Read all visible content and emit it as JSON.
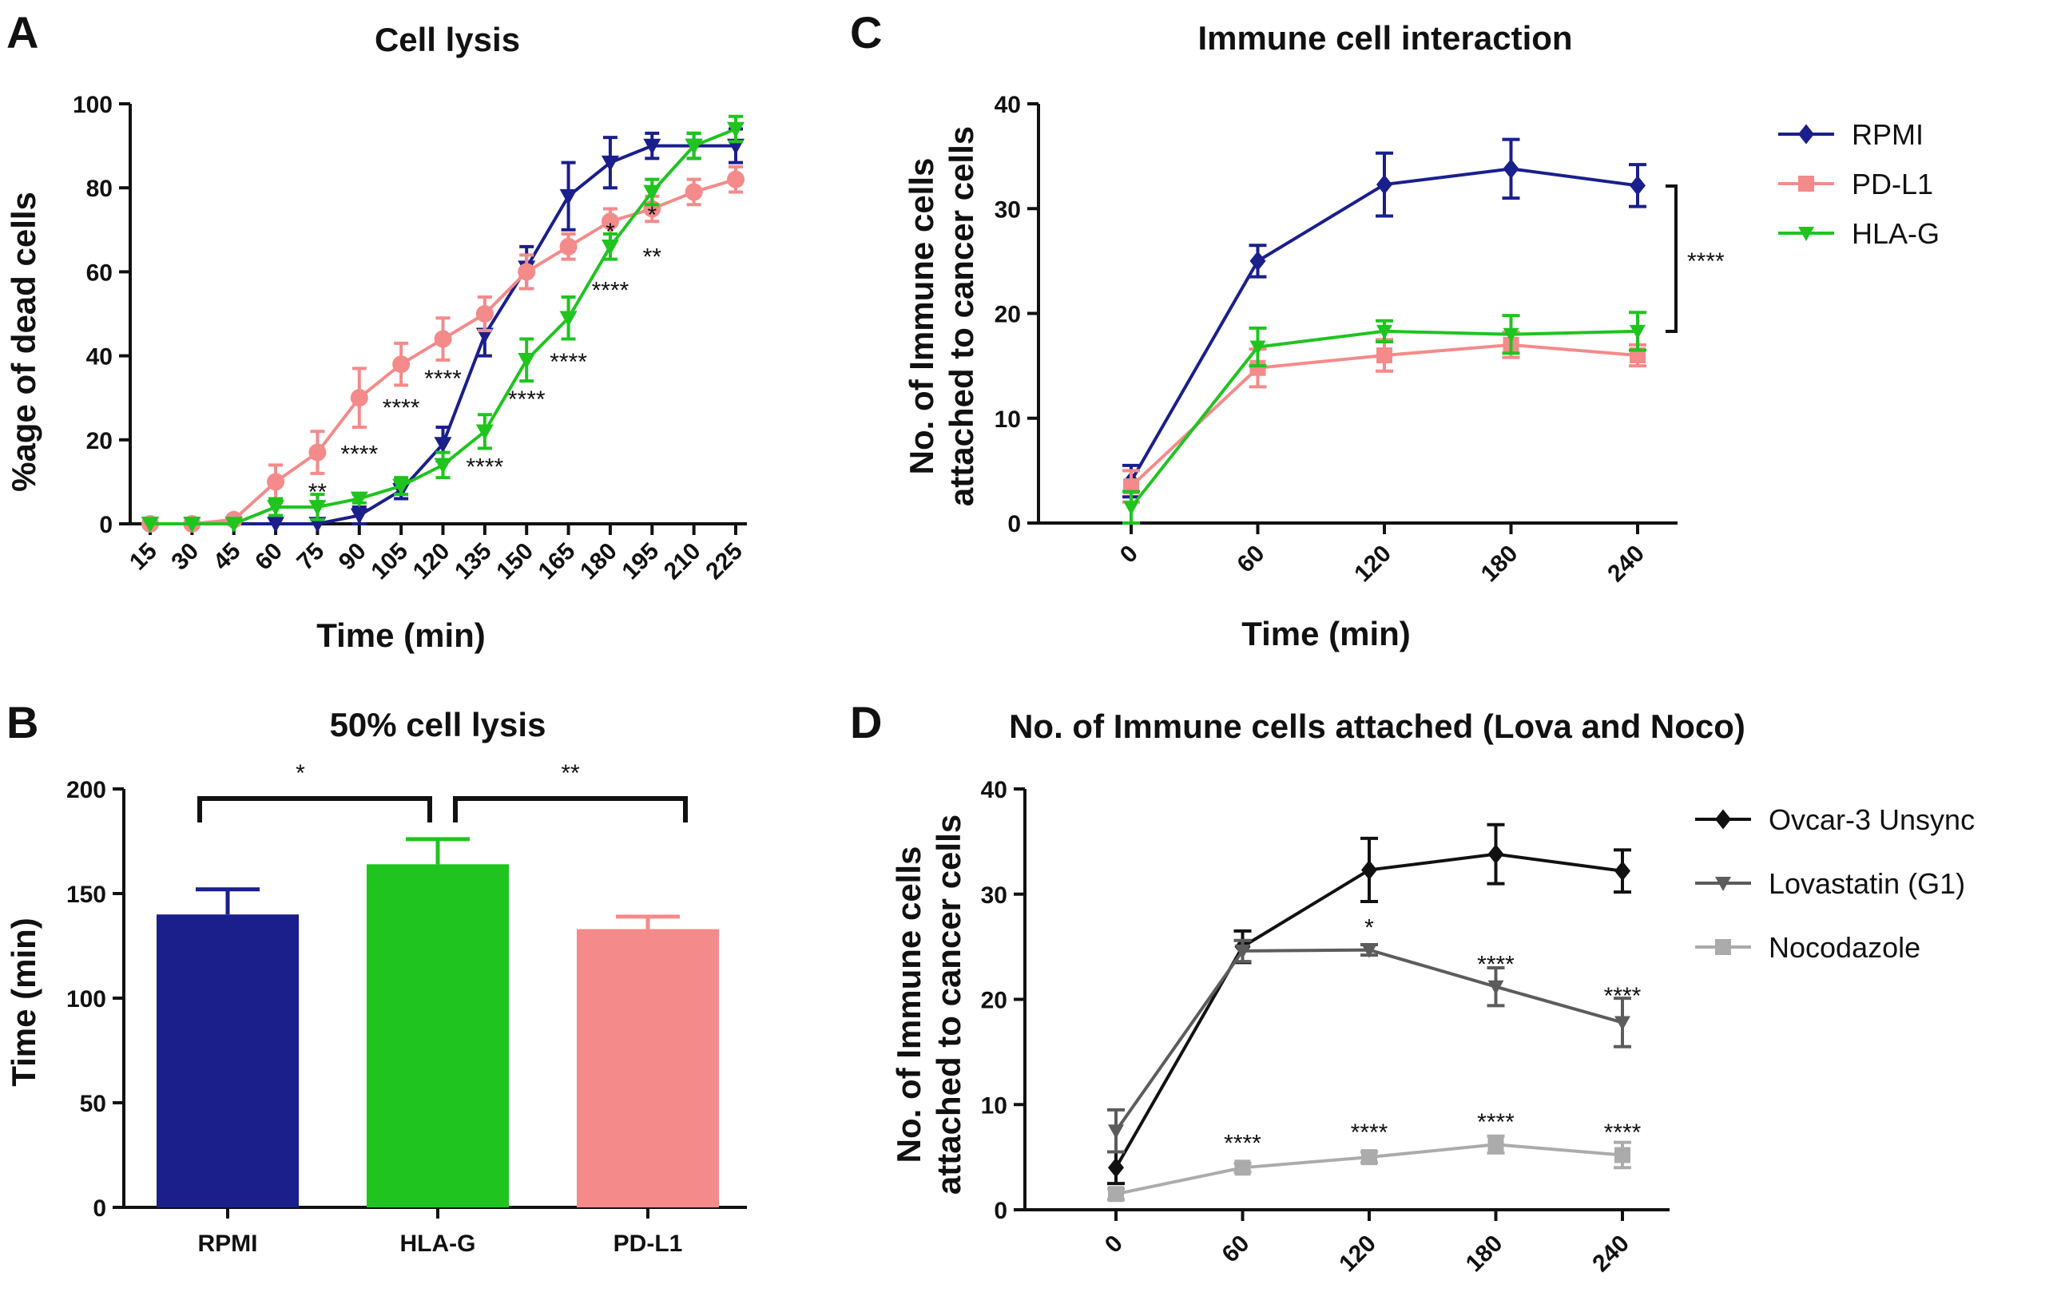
{
  "panels": {
    "A": {
      "letter": "A",
      "title": "Cell lysis",
      "xlabel": "Time (min)",
      "ylabel": "%age of dead cells"
    },
    "B": {
      "letter": "B",
      "title": "50% cell lysis",
      "xlabel": "",
      "ylabel": "Time (min)"
    },
    "C": {
      "letter": "C",
      "title": "Immune cell interaction",
      "xlabel": "Time (min)",
      "ylabel_line1": "No. of Immune cells",
      "ylabel_line2": "attached to cancer cells"
    },
    "D": {
      "letter": "D",
      "title": "No. of Immune cells attached (Lova and Noco)",
      "xlabel": "",
      "ylabel_line1": "No. of Immune cells",
      "ylabel_line2": "attached to cancer cells"
    }
  },
  "colors": {
    "rpmi": "#1a1f8c",
    "pdl1": "#f48a8a",
    "hlag": "#1fc41f",
    "unsync": "#111111",
    "lova": "#5c5c5c",
    "noco": "#ababab"
  },
  "chart_data": [
    {
      "id": "A",
      "type": "line",
      "title": "Cell lysis",
      "xlabel": "Time (min)",
      "ylabel": "%age of dead cells",
      "x": [
        15,
        30,
        45,
        60,
        75,
        90,
        105,
        120,
        135,
        150,
        165,
        180,
        195,
        210,
        225
      ],
      "xticks": [
        "15",
        "30",
        "45",
        "60",
        "75",
        "90",
        "105",
        "120",
        "135",
        "150",
        "165",
        "180",
        "195",
        "210",
        "225"
      ],
      "ylim": [
        0,
        100
      ],
      "yticks": [
        "0",
        "20",
        "40",
        "60",
        "80",
        "100"
      ],
      "series": [
        {
          "key": "rpmi",
          "marker": "triangle-down",
          "values": [
            0,
            0,
            0,
            0,
            0,
            2,
            8,
            19,
            45,
            61,
            78,
            86,
            90,
            90,
            90
          ],
          "errors": [
            0,
            0,
            0,
            0,
            0,
            2,
            2,
            4,
            5,
            5,
            8,
            6,
            3,
            3,
            4
          ]
        },
        {
          "key": "pdl1",
          "marker": "circle",
          "values": [
            0,
            0,
            1,
            10,
            17,
            30,
            38,
            44,
            50,
            60,
            66,
            72,
            75,
            79,
            82
          ],
          "errors": [
            0,
            0,
            1,
            4,
            5,
            7,
            5,
            5,
            4,
            4,
            3,
            3,
            3,
            3,
            3
          ]
        },
        {
          "key": "hlag",
          "marker": "triangle-down",
          "values": [
            0,
            0,
            0,
            4,
            4,
            6,
            9,
            14,
            22,
            39,
            49,
            66,
            79,
            90,
            94
          ],
          "errors": [
            0,
            0,
            0,
            2,
            3,
            1,
            2,
            3,
            4,
            5,
            5,
            3,
            3,
            3,
            3
          ]
        }
      ],
      "annotations": [
        {
          "x": 75,
          "y": 8,
          "text": "**"
        },
        {
          "x": 90,
          "y": 17,
          "text": "****"
        },
        {
          "x": 105,
          "y": 28,
          "text": "****"
        },
        {
          "x": 120,
          "y": 35,
          "text": "****"
        },
        {
          "x": 135,
          "y": 14,
          "text": "****"
        },
        {
          "x": 150,
          "y": 30,
          "text": "****"
        },
        {
          "x": 165,
          "y": 39,
          "text": "****"
        },
        {
          "x": 180,
          "y": 56,
          "text": "****"
        },
        {
          "x": 180,
          "y": 70,
          "text": "*"
        },
        {
          "x": 195,
          "y": 74,
          "text": "*"
        },
        {
          "x": 195,
          "y": 64,
          "text": "**"
        }
      ]
    },
    {
      "id": "B",
      "type": "bar",
      "title": "50% cell lysis",
      "ylabel": "Time (min)",
      "categories": [
        "RPMI",
        "HLA-G",
        "PD-L1"
      ],
      "values": [
        140,
        164,
        133
      ],
      "errors": [
        12,
        12,
        6
      ],
      "colorKeys": [
        "rpmi",
        "hlag",
        "pdl1"
      ],
      "ylim": [
        0,
        200
      ],
      "yticks": [
        "0",
        "50",
        "100",
        "150",
        "200"
      ],
      "brackets": [
        {
          "from": 0,
          "to": 1,
          "text": "*"
        },
        {
          "from": 1,
          "to": 2,
          "text": "**"
        }
      ]
    },
    {
      "id": "C",
      "type": "line",
      "title": "Immune cell interaction",
      "xlabel": "Time (min)",
      "ylabel": "No. of Immune cells attached to cancer cells",
      "x": [
        0,
        60,
        120,
        180,
        240
      ],
      "xticks": [
        "0",
        "60",
        "120",
        "180",
        "240"
      ],
      "ylim": [
        0,
        40
      ],
      "yticks": [
        "0",
        "10",
        "20",
        "30",
        "40"
      ],
      "series": [
        {
          "key": "rpmi",
          "name": "RPMI",
          "marker": "diamond",
          "values": [
            4,
            25,
            32.3,
            33.8,
            32.2
          ],
          "errors": [
            1.5,
            1.5,
            3,
            2.8,
            2
          ]
        },
        {
          "key": "pdl1",
          "name": "PD-L1",
          "marker": "square",
          "values": [
            3.5,
            14.8,
            16,
            17,
            16
          ],
          "errors": [
            1.5,
            1.8,
            1.5,
            1.2,
            1
          ]
        },
        {
          "key": "hlag",
          "name": "HLA-G",
          "marker": "triangle-down",
          "values": [
            1.5,
            16.8,
            18.3,
            18,
            18.3
          ],
          "errors": [
            1.5,
            1.8,
            1,
            1.8,
            1.8
          ]
        }
      ],
      "bracket_text": "****"
    },
    {
      "id": "D",
      "type": "line",
      "title": "No. of Immune cells attached (Lova and Noco)",
      "ylabel": "No. of Immune cells attached to cancer cells",
      "x": [
        0,
        60,
        120,
        180,
        240
      ],
      "xticks": [
        "0",
        "60",
        "120",
        "180",
        "240"
      ],
      "ylim": [
        0,
        40
      ],
      "yticks": [
        "0",
        "10",
        "20",
        "30",
        "40"
      ],
      "series": [
        {
          "key": "unsync",
          "name": "Ovcar-3 Unsync",
          "marker": "diamond",
          "values": [
            4,
            25,
            32.3,
            33.8,
            32.2
          ],
          "errors": [
            1.5,
            1.5,
            3,
            2.8,
            2
          ]
        },
        {
          "key": "lova",
          "name": "Lovastatin (G1)",
          "marker": "triangle-down",
          "values": [
            7.5,
            24.6,
            24.7,
            21.2,
            17.8
          ],
          "errors": [
            2,
            1,
            0.5,
            1.8,
            2.3
          ]
        },
        {
          "key": "noco",
          "name": "Nocodazole",
          "marker": "square",
          "values": [
            1.5,
            4,
            5,
            6.2,
            5.2
          ],
          "errors": [
            0.5,
            0.4,
            0.5,
            0.8,
            1.2
          ]
        }
      ],
      "annotations": [
        {
          "x": 60,
          "y": 6.5,
          "text": "****"
        },
        {
          "x": 120,
          "y": 7.5,
          "text": "****"
        },
        {
          "x": 180,
          "y": 8.5,
          "text": "****"
        },
        {
          "x": 240,
          "y": 7.5,
          "text": "****"
        },
        {
          "x": 120,
          "y": 27,
          "text": "*"
        },
        {
          "x": 180,
          "y": 23.5,
          "text": "****"
        },
        {
          "x": 240,
          "y": 20.5,
          "text": "****"
        }
      ]
    }
  ]
}
